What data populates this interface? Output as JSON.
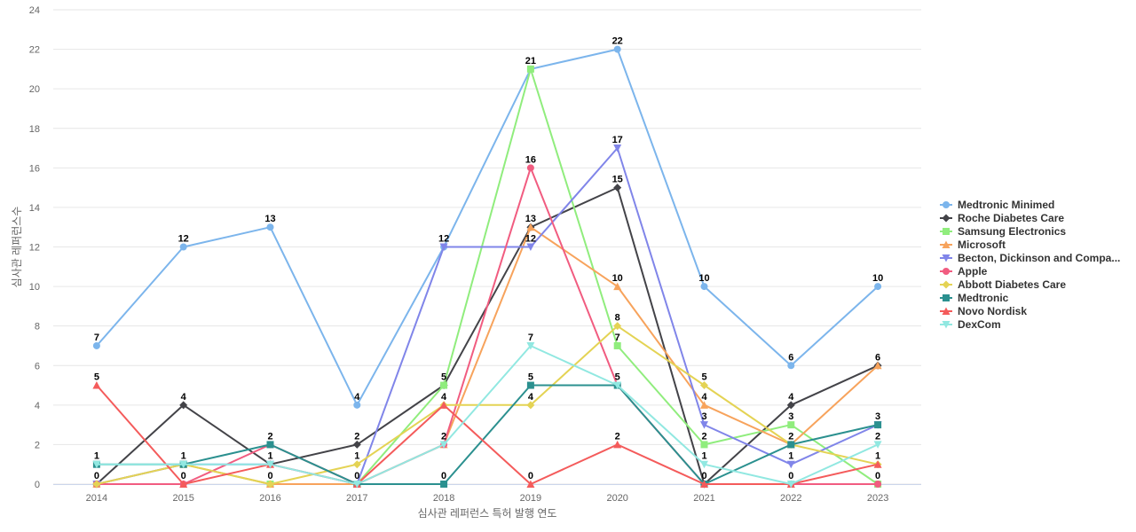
{
  "chart_data": {
    "type": "line",
    "xlabel": "심사관 레퍼런스 특허 발행 연도",
    "ylabel": "심사관 레퍼런스수",
    "x": [
      "2014",
      "2015",
      "2016",
      "2017",
      "2018",
      "2019",
      "2020",
      "2021",
      "2022",
      "2023"
    ],
    "ylim": [
      0,
      24
    ],
    "yticks": [
      0,
      2,
      4,
      6,
      8,
      10,
      12,
      14,
      16,
      18,
      20,
      22,
      24
    ],
    "grid": true,
    "legend_position": "right",
    "series": [
      {
        "name": "Medtronic Minimed",
        "color": "#7cb5ec",
        "marker": "circle",
        "values": [
          7,
          12,
          13,
          4,
          12,
          21,
          22,
          10,
          6,
          10
        ]
      },
      {
        "name": "Roche Diabetes Care",
        "color": "#434348",
        "marker": "diamond",
        "values": [
          0,
          4,
          1,
          2,
          5,
          13,
          15,
          0,
          4,
          6
        ]
      },
      {
        "name": "Samsung Electronics",
        "color": "#90ed7d",
        "marker": "square",
        "values": [
          0,
          1,
          0,
          0,
          5,
          21,
          7,
          2,
          3,
          0
        ]
      },
      {
        "name": "Microsoft",
        "color": "#f7a35c",
        "marker": "triangle",
        "values": [
          0,
          1,
          0,
          0,
          2,
          13,
          10,
          4,
          2,
          6
        ]
      },
      {
        "name": "Becton, Dickinson and Compa...",
        "color": "#8085e9",
        "marker": "triangle-down",
        "values": [
          0,
          1,
          1,
          0,
          12,
          12,
          17,
          3,
          1,
          3
        ]
      },
      {
        "name": "Apple",
        "color": "#f15c80",
        "marker": "circle",
        "values": [
          0,
          0,
          2,
          0,
          2,
          16,
          5,
          0,
          0,
          0
        ]
      },
      {
        "name": "Abbott Diabetes Care",
        "color": "#e4d354",
        "marker": "diamond",
        "values": [
          0,
          1,
          0,
          1,
          4,
          4,
          8,
          5,
          2,
          1
        ]
      },
      {
        "name": "Medtronic",
        "color": "#2b908f",
        "marker": "square",
        "values": [
          1,
          1,
          2,
          0,
          0,
          5,
          5,
          0,
          2,
          3
        ]
      },
      {
        "name": "Novo Nordisk",
        "color": "#f45b5b",
        "marker": "triangle",
        "values": [
          5,
          0,
          1,
          0,
          4,
          0,
          2,
          0,
          0,
          1
        ]
      },
      {
        "name": "DexCom",
        "color": "#91e8e1",
        "marker": "triangle-down",
        "values": [
          1,
          1,
          1,
          0,
          2,
          7,
          5,
          1,
          0,
          2
        ]
      }
    ],
    "data_labels": [
      {
        "x": "2014",
        "y": 7,
        "text": "7"
      },
      {
        "x": "2014",
        "y": 5,
        "text": "5"
      },
      {
        "x": "2014",
        "y": 1,
        "text": "1"
      },
      {
        "x": "2014",
        "y": 0,
        "text": "0"
      },
      {
        "x": "2015",
        "y": 12,
        "text": "12"
      },
      {
        "x": "2015",
        "y": 4,
        "text": "4"
      },
      {
        "x": "2015",
        "y": 1,
        "text": "1"
      },
      {
        "x": "2015",
        "y": 0,
        "text": "0"
      },
      {
        "x": "2016",
        "y": 13,
        "text": "13"
      },
      {
        "x": "2016",
        "y": 2,
        "text": "2"
      },
      {
        "x": "2016",
        "y": 1,
        "text": "1"
      },
      {
        "x": "2016",
        "y": 0,
        "text": "0"
      },
      {
        "x": "2017",
        "y": 4,
        "text": "4"
      },
      {
        "x": "2017",
        "y": 2,
        "text": "2"
      },
      {
        "x": "2017",
        "y": 1,
        "text": "1"
      },
      {
        "x": "2017",
        "y": 0,
        "text": "0"
      },
      {
        "x": "2018",
        "y": 12,
        "text": "12"
      },
      {
        "x": "2018",
        "y": 5,
        "text": "5"
      },
      {
        "x": "2018",
        "y": 4,
        "text": "4"
      },
      {
        "x": "2018",
        "y": 2,
        "text": "2"
      },
      {
        "x": "2018",
        "y": 0,
        "text": "0"
      },
      {
        "x": "2019",
        "y": 21,
        "text": "21"
      },
      {
        "x": "2019",
        "y": 16,
        "text": "16"
      },
      {
        "x": "2019",
        "y": 13,
        "text": "13"
      },
      {
        "x": "2019",
        "y": 12,
        "text": "12"
      },
      {
        "x": "2019",
        "y": 7,
        "text": "7"
      },
      {
        "x": "2019",
        "y": 5,
        "text": "5"
      },
      {
        "x": "2019",
        "y": 4,
        "text": "4"
      },
      {
        "x": "2019",
        "y": 0,
        "text": "0"
      },
      {
        "x": "2020",
        "y": 22,
        "text": "22"
      },
      {
        "x": "2020",
        "y": 17,
        "text": "17"
      },
      {
        "x": "2020",
        "y": 15,
        "text": "15"
      },
      {
        "x": "2020",
        "y": 10,
        "text": "10"
      },
      {
        "x": "2020",
        "y": 8,
        "text": "8"
      },
      {
        "x": "2020",
        "y": 7,
        "text": "7"
      },
      {
        "x": "2020",
        "y": 5,
        "text": "5"
      },
      {
        "x": "2020",
        "y": 2,
        "text": "2"
      },
      {
        "x": "2021",
        "y": 10,
        "text": "10"
      },
      {
        "x": "2021",
        "y": 5,
        "text": "5"
      },
      {
        "x": "2021",
        "y": 4,
        "text": "4"
      },
      {
        "x": "2021",
        "y": 3,
        "text": "3"
      },
      {
        "x": "2021",
        "y": 2,
        "text": "2"
      },
      {
        "x": "2021",
        "y": 1,
        "text": "1"
      },
      {
        "x": "2021",
        "y": 0,
        "text": "0"
      },
      {
        "x": "2022",
        "y": 6,
        "text": "6"
      },
      {
        "x": "2022",
        "y": 4,
        "text": "4"
      },
      {
        "x": "2022",
        "y": 3,
        "text": "3"
      },
      {
        "x": "2022",
        "y": 2,
        "text": "2"
      },
      {
        "x": "2022",
        "y": 1,
        "text": "1"
      },
      {
        "x": "2022",
        "y": 0,
        "text": "0"
      },
      {
        "x": "2023",
        "y": 10,
        "text": "10"
      },
      {
        "x": "2023",
        "y": 6,
        "text": "6"
      },
      {
        "x": "2023",
        "y": 3,
        "text": "3"
      },
      {
        "x": "2023",
        "y": 2,
        "text": "2"
      },
      {
        "x": "2023",
        "y": 1,
        "text": "1"
      },
      {
        "x": "2023",
        "y": 0,
        "text": "0"
      }
    ]
  }
}
